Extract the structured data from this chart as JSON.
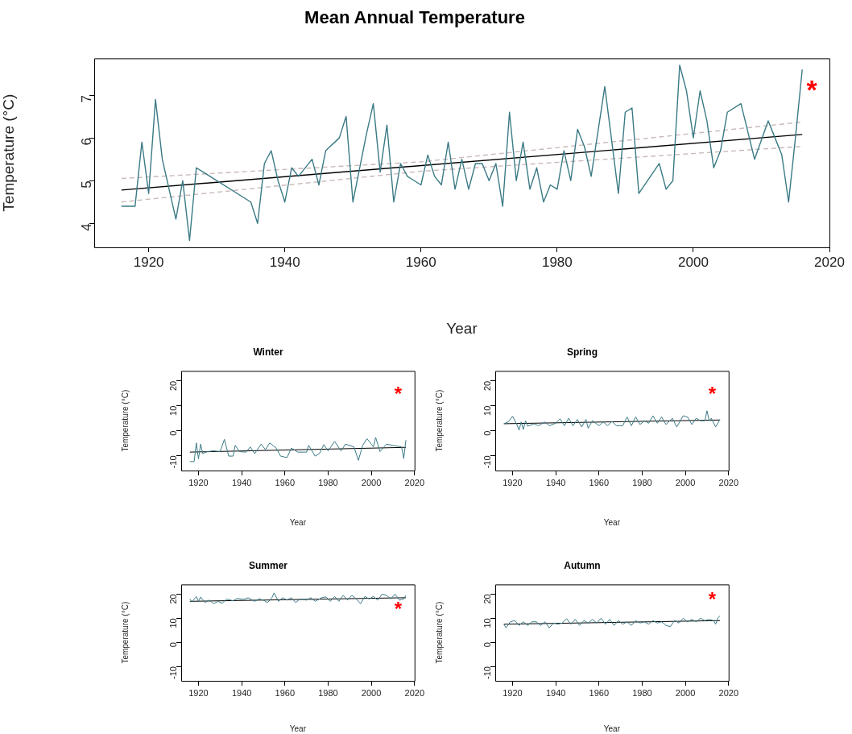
{
  "chart_data": [
    {
      "type": "line",
      "title": "Mean Annual Temperature",
      "xlabel": "Year",
      "ylabel": "Temperature (°C)",
      "xlim": [
        1912,
        2020
      ],
      "xticks": [
        1920,
        1940,
        1960,
        1980,
        2000,
        2020
      ],
      "ylim": [
        3.44,
        7.86
      ],
      "yticks": [
        4,
        5,
        6,
        7
      ],
      "grid": false,
      "legend": false,
      "marker": "none",
      "annotations": [
        "*"
      ],
      "series": [
        {
          "color": "#3a7a85",
          "x": [
            1916,
            1918,
            1919,
            1920,
            1921,
            1922,
            1924,
            1925,
            1926,
            1927,
            1935,
            1936,
            1937,
            1938,
            1939,
            1940,
            1941,
            1942,
            1944,
            1945,
            1946,
            1948,
            1949,
            1950,
            1952,
            1953,
            1954,
            1955,
            1956,
            1957,
            1958,
            1960,
            1961,
            1962,
            1963,
            1964,
            1965,
            1966,
            1967,
            1968,
            1969,
            1970,
            1971,
            1972,
            1973,
            1974,
            1975,
            1976,
            1977,
            1978,
            1979,
            1980,
            1981,
            1982,
            1983,
            1984,
            1985,
            1987,
            1989,
            1990,
            1991,
            1992,
            1995,
            1996,
            1997,
            1998,
            1999,
            2000,
            2001,
            2002,
            2003,
            2004,
            2005,
            2007,
            2009,
            2011,
            2012,
            2013,
            2014,
            2015,
            2016
          ],
          "values": [
            4.4,
            4.4,
            5.9,
            4.7,
            6.9,
            5.5,
            4.1,
            5.0,
            3.6,
            5.3,
            4.5,
            4.0,
            5.4,
            5.7,
            5.0,
            4.5,
            5.3,
            5.1,
            5.5,
            4.9,
            5.7,
            6.0,
            6.5,
            4.5,
            6.1,
            6.8,
            5.2,
            6.3,
            4.5,
            5.4,
            5.1,
            4.9,
            5.6,
            5.1,
            4.9,
            5.9,
            4.8,
            5.5,
            4.8,
            5.4,
            5.4,
            5.0,
            5.4,
            4.4,
            6.6,
            5.0,
            5.9,
            4.8,
            5.3,
            4.5,
            4.9,
            4.8,
            5.7,
            5.0,
            6.2,
            5.8,
            5.1,
            7.2,
            4.7,
            6.6,
            6.7,
            4.7,
            5.4,
            4.8,
            5.0,
            7.7,
            7.1,
            6.0,
            7.1,
            6.4,
            5.3,
            5.7,
            6.6,
            6.8,
            5.5,
            6.4,
            6.0,
            5.6,
            4.5,
            6.0,
            7.6
          ]
        },
        {
          "color": "#c9b9b9",
          "type": "line",
          "line_style": "dashed",
          "x": [
            1916,
            1960,
            2016
          ],
          "values": [
            5.05,
            5.44,
            6.37
          ]
        },
        {
          "color": "#c9b9b9",
          "type": "line",
          "line_style": "dashed",
          "x": [
            1916,
            1960,
            2016
          ],
          "values": [
            4.5,
            5.22,
            5.8
          ]
        },
        {
          "color": "#000000",
          "type": "line",
          "x": [
            1916,
            2016
          ],
          "values": [
            4.78,
            6.08
          ]
        }
      ]
    },
    {
      "type": "line",
      "title": "Winter",
      "xlabel": "Year",
      "ylabel": "Temperature (°C)",
      "xlim": [
        1912,
        2020
      ],
      "xticks": [
        1920,
        1940,
        1960,
        1980,
        2000,
        2020
      ],
      "ylim": [
        -16,
        24
      ],
      "yticks": [
        -10,
        0,
        10,
        20
      ],
      "grid": false,
      "legend": false,
      "marker": "none",
      "annotations": [
        "*"
      ],
      "series": [
        {
          "color": "#3a7a85",
          "x": [
            1916,
            1918,
            1919,
            1920,
            1921,
            1922,
            1924,
            1927,
            1930,
            1932,
            1934,
            1936,
            1937,
            1939,
            1942,
            1944,
            1946,
            1949,
            1951,
            1953,
            1956,
            1958,
            1961,
            1963,
            1966,
            1970,
            1971,
            1974,
            1976,
            1978,
            1980,
            1983,
            1986,
            1988,
            1992,
            1994,
            1996,
            1998,
            2001,
            2002,
            2004,
            2007,
            2010,
            2014,
            2015,
            2016
          ],
          "values": [
            -12.4,
            -12.4,
            -4.9,
            -11.3,
            -5.4,
            -9.2,
            -8.4,
            -8.1,
            -8.4,
            -3.5,
            -10.2,
            -10.2,
            -5.9,
            -8.4,
            -8.6,
            -6.5,
            -9.2,
            -5.4,
            -7.6,
            -4.9,
            -7.0,
            -10.2,
            -10.8,
            -7.0,
            -8.6,
            -8.6,
            -5.9,
            -10.2,
            -9.2,
            -5.6,
            -8.1,
            -4.3,
            -8.1,
            -5.4,
            -6.5,
            -11.9,
            -5.9,
            -3.2,
            -6.5,
            -2.7,
            -8.4,
            -5.4,
            -5.9,
            -6.5,
            -11.2,
            -3.8
          ]
        },
        {
          "color": "#000000",
          "type": "line",
          "x": [
            1916,
            2016
          ],
          "values": [
            -8.6,
            -6.7
          ]
        }
      ]
    },
    {
      "type": "line",
      "title": "Spring",
      "xlabel": "Year",
      "ylabel": "Temperature (°C)",
      "xlim": [
        1912,
        2020
      ],
      "xticks": [
        1920,
        1940,
        1960,
        1980,
        2000,
        2020
      ],
      "ylim": [
        -16,
        24
      ],
      "yticks": [
        -10,
        0,
        10,
        20
      ],
      "grid": false,
      "legend": false,
      "marker": "none",
      "annotations": [
        "*"
      ],
      "series": [
        {
          "color": "#3a7a85",
          "x": [
            1916,
            1918,
            1920,
            1922,
            1923,
            1924,
            1925,
            1926,
            1927,
            1930,
            1932,
            1935,
            1937,
            1940,
            1942,
            1944,
            1946,
            1948,
            1950,
            1952,
            1954,
            1955,
            1957,
            1960,
            1962,
            1964,
            1966,
            1968,
            1971,
            1973,
            1975,
            1977,
            1979,
            1981,
            1983,
            1985,
            1987,
            1989,
            1991,
            1994,
            1996,
            1999,
            2001,
            2003,
            2005,
            2007,
            2009,
            2010,
            2011,
            2012,
            2014,
            2016
          ],
          "values": [
            2.8,
            3.5,
            5.8,
            2.5,
            0.2,
            3.5,
            0.5,
            4,
            1.8,
            2.8,
            2,
            3.5,
            2,
            3,
            4.8,
            2,
            5,
            2,
            4.5,
            1.5,
            4.5,
            1,
            4,
            2,
            3.5,
            2,
            3.8,
            2,
            2,
            5.5,
            2,
            5.5,
            2.5,
            4,
            3,
            6,
            3,
            5.5,
            2.5,
            5,
            1.5,
            6,
            5.5,
            2.5,
            5,
            4,
            4,
            8,
            4,
            5,
            1.5,
            4.5
          ]
        },
        {
          "color": "#000000",
          "type": "line",
          "x": [
            1916,
            2016
          ],
          "values": [
            2.8,
            4.3
          ]
        }
      ]
    },
    {
      "type": "line",
      "title": "Summer",
      "xlabel": "Year",
      "ylabel": "Temperature (°C)",
      "xlim": [
        1912,
        2020
      ],
      "xticks": [
        1920,
        1940,
        1960,
        1980,
        2000,
        2020
      ],
      "ylim": [
        -16,
        24
      ],
      "yticks": [
        -10,
        0,
        10,
        20
      ],
      "grid": false,
      "legend": false,
      "marker": "none",
      "annotations": [
        "*"
      ],
      "series": [
        {
          "color": "#3a7a85",
          "x": [
            1916,
            1917,
            1919,
            1920,
            1921,
            1923,
            1925,
            1927,
            1929,
            1931,
            1933,
            1936,
            1938,
            1941,
            1943,
            1946,
            1948,
            1950,
            1952,
            1954,
            1955,
            1957,
            1959,
            1961,
            1963,
            1965,
            1967,
            1970,
            1972,
            1974,
            1977,
            1979,
            1981,
            1983,
            1985,
            1987,
            1989,
            1991,
            1993,
            1995,
            1997,
            1999,
            2001,
            2003,
            2005,
            2007,
            2009,
            2011,
            2013,
            2015,
            2016
          ],
          "values": [
            18,
            16.8,
            19,
            17,
            18.8,
            16.5,
            17.5,
            16,
            17,
            16.2,
            18,
            17.2,
            18.2,
            17.8,
            18.5,
            17,
            18,
            17.5,
            16.5,
            18.5,
            20.5,
            17,
            18.5,
            17.5,
            18.5,
            16.5,
            18,
            17.5,
            18.5,
            17,
            18.5,
            18.8,
            17,
            19,
            17,
            19.5,
            17.5,
            19.5,
            18,
            16,
            19,
            18,
            19,
            17.5,
            20,
            19.5,
            18,
            20,
            17.5,
            18,
            19.5
          ]
        },
        {
          "color": "#000000",
          "type": "line",
          "x": [
            1916,
            2016
          ],
          "values": [
            17,
            18.5
          ]
        }
      ]
    },
    {
      "type": "line",
      "title": "Autumn",
      "xlabel": "Year",
      "ylabel": "Temperature (°C)",
      "xlim": [
        1912,
        2020
      ],
      "xticks": [
        1920,
        1940,
        1960,
        1980,
        2000,
        2020
      ],
      "ylim": [
        -16,
        24
      ],
      "yticks": [
        -10,
        0,
        10,
        20
      ],
      "grid": false,
      "legend": false,
      "marker": "none",
      "annotations": [
        "*"
      ],
      "series": [
        {
          "color": "#3a7a85",
          "x": [
            1916,
            1917,
            1919,
            1921,
            1923,
            1925,
            1927,
            1929,
            1931,
            1933,
            1935,
            1937,
            1939,
            1941,
            1943,
            1945,
            1947,
            1949,
            1951,
            1953,
            1955,
            1957,
            1959,
            1961,
            1963,
            1965,
            1967,
            1969,
            1971,
            1973,
            1975,
            1977,
            1979,
            1981,
            1983,
            1985,
            1987,
            1989,
            1991,
            1993,
            1995,
            1997,
            1999,
            2001,
            2003,
            2005,
            2007,
            2009,
            2011,
            2013,
            2014,
            2015,
            2016
          ],
          "values": [
            7.5,
            6,
            8.5,
            9,
            7,
            8.5,
            7,
            8.5,
            8.5,
            7,
            8.5,
            6,
            8,
            7.5,
            8,
            9.8,
            7.5,
            9.5,
            7,
            9,
            8,
            9.5,
            8,
            10,
            7.5,
            9.5,
            7,
            9,
            7.5,
            8.5,
            7,
            9,
            8,
            8.5,
            7.5,
            9,
            8,
            8.5,
            7,
            6.5,
            9,
            8,
            10,
            8.5,
            9.5,
            8.5,
            10,
            9,
            9.5,
            9,
            7.5,
            10,
            11
          ]
        },
        {
          "color": "#000000",
          "type": "line",
          "x": [
            1916,
            2016
          ],
          "values": [
            7.5,
            9
          ]
        }
      ]
    }
  ]
}
